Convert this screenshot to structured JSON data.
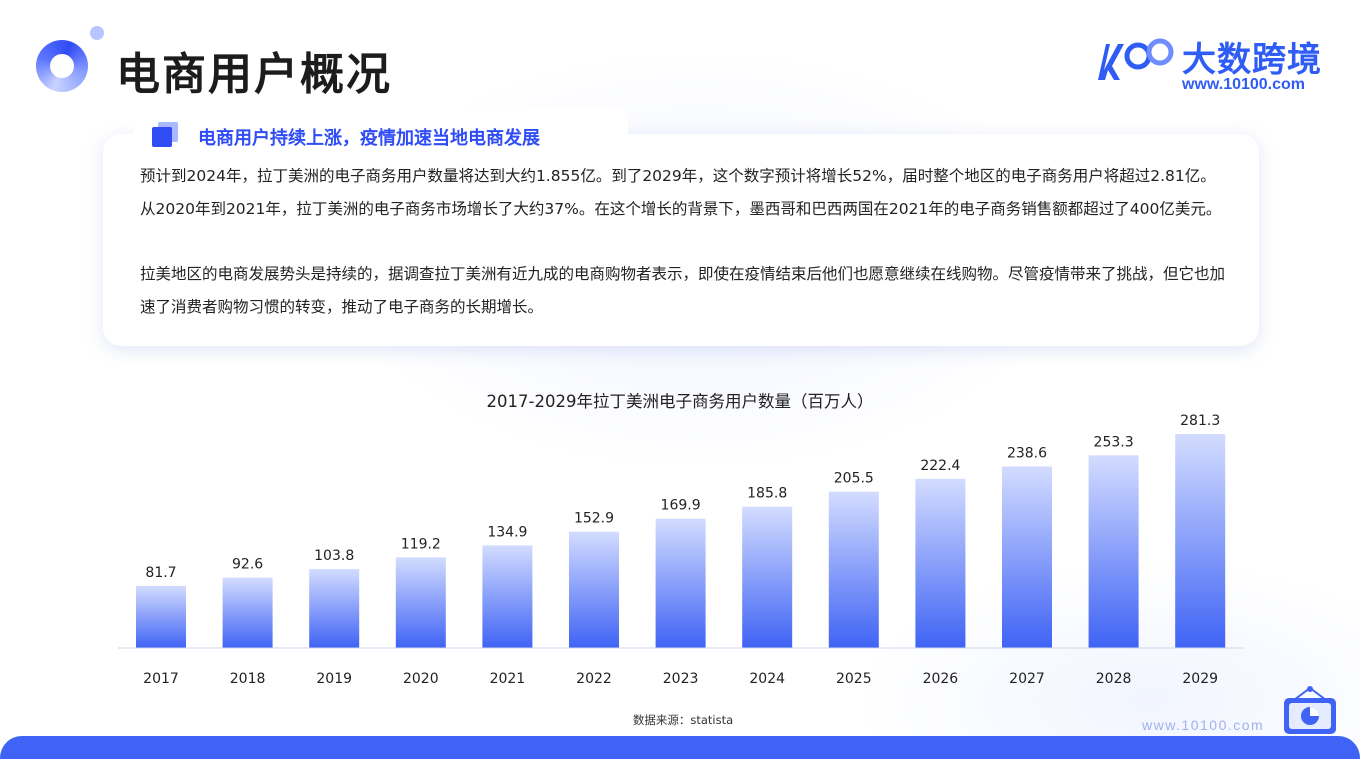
{
  "header": {
    "title": "电商用户概况",
    "brand_name": "大数跨境",
    "brand_url": "www.10100.com"
  },
  "section": {
    "subtitle": "电商用户持续上涨，疫情加速当地电商发展",
    "paragraph1": "预计到2024年，拉丁美洲的电子商务用户数量将达到大约1.855亿。到了2029年，这个数字预计将增长52%，届时整个地区的电子商务用户将超过2.81亿。从2020年到2021年，拉丁美洲的电子商务市场增长了大约37%。在这个增长的背景下，墨西哥和巴西两国在2021年的电子商务销售额都超过了400亿美元。",
    "paragraph2": "拉美地区的电商发展势头是持续的，据调查拉丁美洲有近九成的电商购物者表示，即使在疫情结束后他们也愿意继续在线购物。尽管疫情带来了挑战，但它也加速了消费者购物习惯的转变，推动了电子商务的长期增长。"
  },
  "chart_data": {
    "type": "bar",
    "title": "2017-2029年拉丁美洲电子商务用户数量（百万人）",
    "categories": [
      "2017",
      "2018",
      "2019",
      "2020",
      "2021",
      "2022",
      "2023",
      "2024",
      "2025",
      "2026",
      "2027",
      "2028",
      "2029"
    ],
    "values": [
      81.7,
      92.6,
      103.8,
      119.2,
      134.9,
      152.9,
      169.9,
      185.8,
      205.5,
      222.4,
      238.6,
      253.3,
      281.3
    ],
    "value_labels": [
      "81.7",
      "92.6",
      "103.8",
      "119.2",
      "134.9",
      "152.9",
      "169.9",
      "185.8",
      "205.5",
      "222.4",
      "238.6",
      "253.3",
      "281.3"
    ],
    "xlabel": "",
    "ylabel": "",
    "ylim": [
      0,
      281.3
    ],
    "grid": false,
    "legend": "none",
    "bar_gradient_top": "#d3dcff",
    "bar_gradient_bottom": "#3f63f5",
    "source": "数据来源：statista"
  },
  "footer": {
    "url": "www.10100.com",
    "bar_color": "#3f63f5"
  }
}
